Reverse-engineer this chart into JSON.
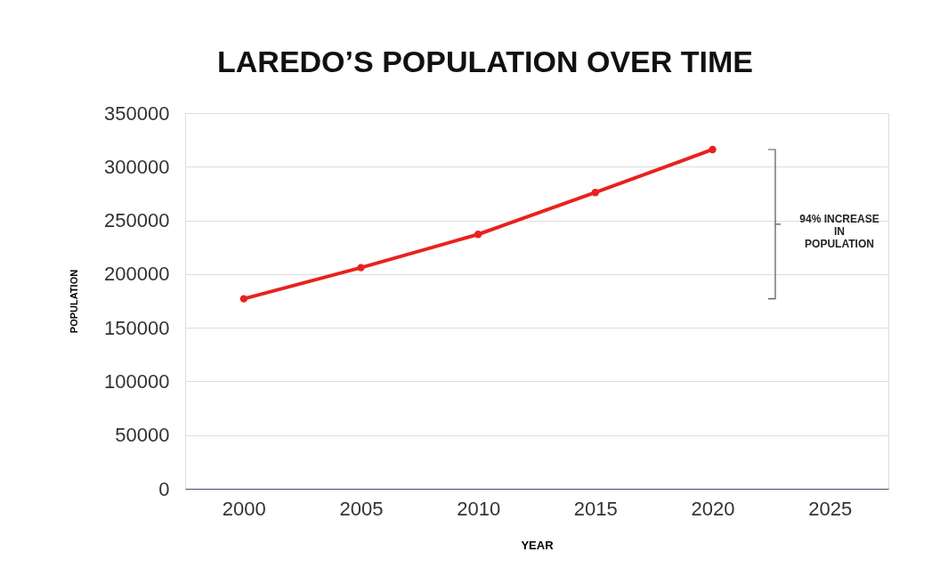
{
  "chart_data": {
    "type": "line",
    "title": "LAREDO’S POPULATION OVER TIME",
    "xlabel": "YEAR",
    "ylabel": "POPULATION",
    "x": [
      2000,
      2005,
      2010,
      2015,
      2020
    ],
    "series": [
      {
        "color": "#e8221e",
        "values": [
          177000,
          206000,
          237000,
          276000,
          316000
        ]
      }
    ],
    "xlim": [
      1997.5,
      2027.5
    ],
    "xticks": [
      2000,
      2005,
      2010,
      2015,
      2020,
      2025
    ],
    "ylim": [
      0,
      350000
    ],
    "yticks": [
      0,
      50000,
      100000,
      150000,
      200000,
      250000,
      300000,
      350000
    ],
    "grid": "y",
    "legend": false,
    "marker": "circle",
    "line_style": "solid",
    "annotations": [
      "94% INCREASE\nIN\nPOPULATION"
    ]
  }
}
